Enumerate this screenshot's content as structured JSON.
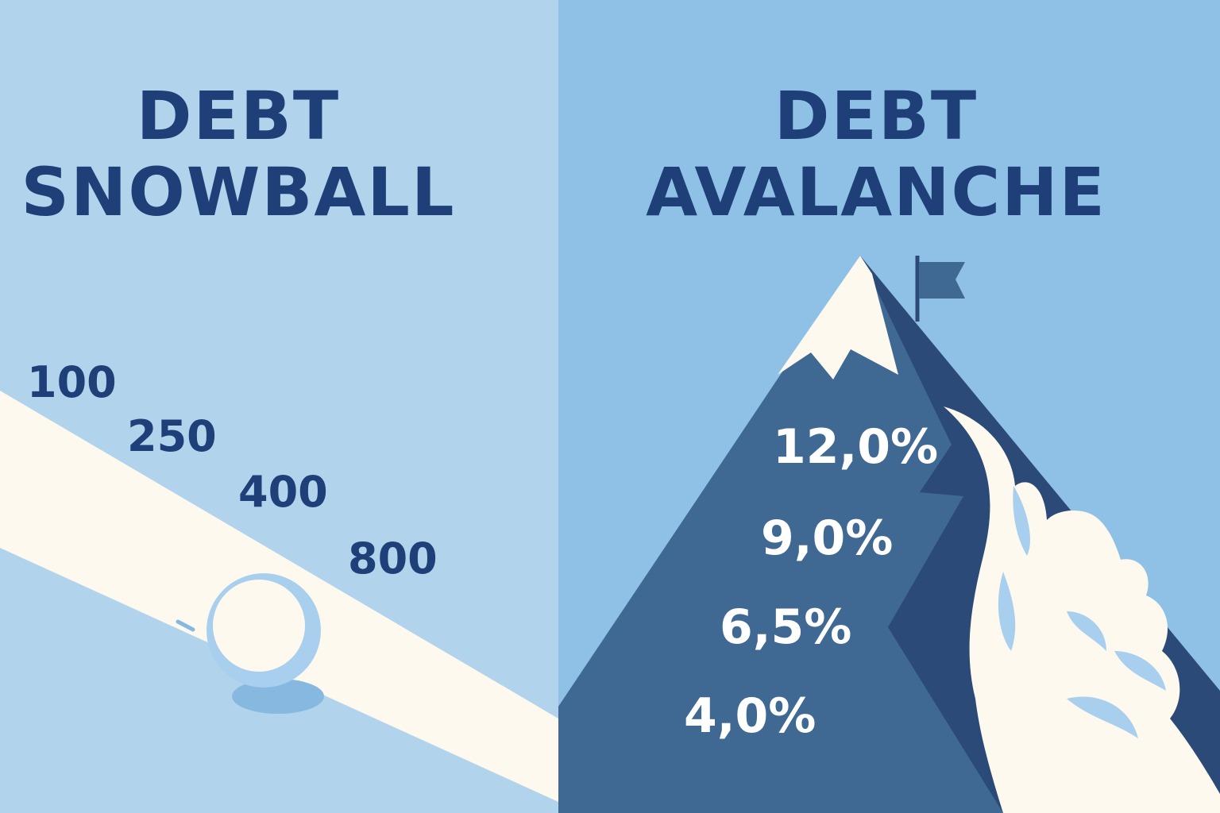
{
  "colors": {
    "left_bg": "#b1d3ec",
    "right_bg": "#8fc0e6",
    "navy": "#1f3f78",
    "mountain": "#3f6893",
    "mountain_shadow": "#2b4a78",
    "snow": "#fdf9ef",
    "ball_edge": "#a9cfee",
    "ball_shadow": "#86b8e0",
    "flag": "#3f6893"
  },
  "icons": {
    "snowball": "snowball-icon",
    "mountain": "mountain-icon",
    "flag": "flag-icon",
    "avalanche": "avalanche-cloud-icon"
  },
  "snowball": {
    "title_line1": "DEBT",
    "title_line2": "SNOWBALL",
    "balances": [
      "100",
      "250",
      "400",
      "800"
    ]
  },
  "avalanche": {
    "title_line1": "DEBT",
    "title_line2": "AVALANCHE",
    "rates": [
      "12,0%",
      "9,0%",
      "6,5%",
      "4,0%"
    ]
  }
}
